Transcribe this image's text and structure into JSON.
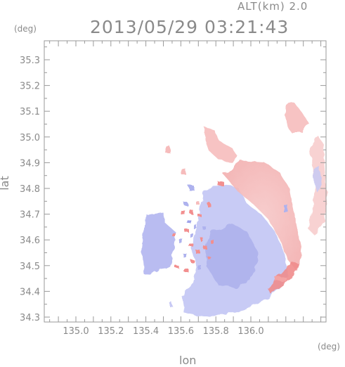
{
  "header": {
    "altitude": "ALT(km) 2.0",
    "timestamp": "2013/05/29 03:21:43"
  },
  "axes": {
    "y_unit": "(deg)",
    "x_unit": "(deg)",
    "x_label": "lon",
    "y_label": "lat",
    "x_ticks": [
      "135.0",
      "135.2",
      "135.4",
      "135.6",
      "135.8",
      "136.0"
    ],
    "y_ticks": [
      "35.3",
      "35.2",
      "35.1",
      "35.0",
      "34.9",
      "34.8",
      "34.7",
      "34.6",
      "34.5",
      "34.4",
      "34.3"
    ]
  },
  "colors": {
    "approaching": "#b9bdf2",
    "receding": "#f5b8b8",
    "axis": "#9a9a9a"
  }
}
